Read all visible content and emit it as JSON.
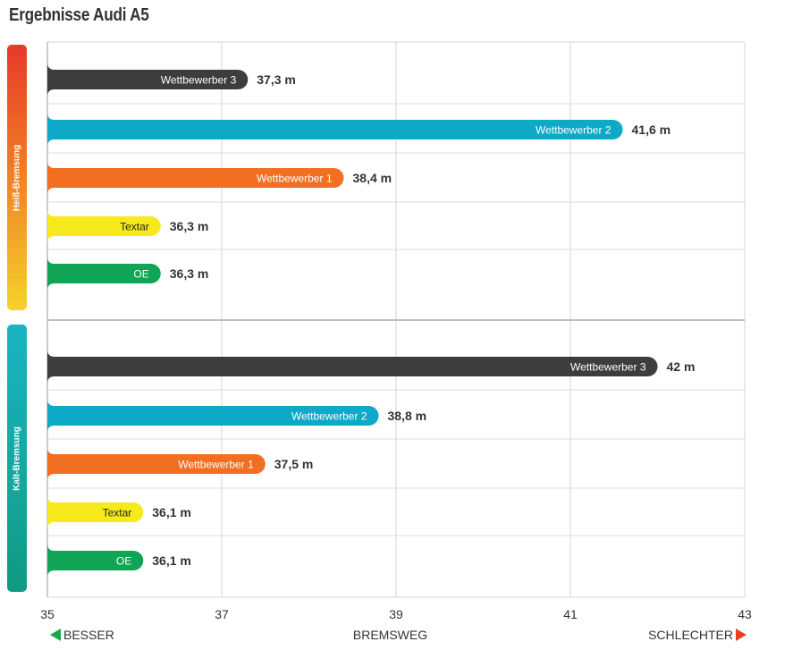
{
  "title": "Ergebnisse Audi A5",
  "sections": [
    {
      "label": "Heiß-Bremsung"
    },
    {
      "label": "Kalt-Bremsung"
    }
  ],
  "footer": {
    "left": "BESSER",
    "center": "BREMSWEG",
    "right": "SCHLECHTER"
  },
  "colors": {
    "Wettbewerber 3": "#3d3d3d",
    "Wettbewerber 2": "#0ea9c6",
    "Wettbewerber 1": "#f26f22",
    "Textar": "#f7ea1c",
    "OE": "#10a555"
  },
  "chart_data": {
    "type": "bar",
    "orientation": "horizontal",
    "xlabel": "BREMSWEG",
    "xlim": [
      35,
      43
    ],
    "xticks": [
      "35",
      "37",
      "39",
      "41",
      "43"
    ],
    "grid": true,
    "groups": [
      {
        "name": "Heiß-Bremsung",
        "bars": [
          {
            "label": "Wettbewerber 3",
            "value": 37.3,
            "value_label": "37,3 m"
          },
          {
            "label": "Wettbewerber 2",
            "value": 41.6,
            "value_label": "41,6 m"
          },
          {
            "label": "Wettbewerber 1",
            "value": 38.4,
            "value_label": "38,4 m"
          },
          {
            "label": "Textar",
            "value": 36.3,
            "value_label": "36,3 m"
          },
          {
            "label": "OE",
            "value": 36.3,
            "value_label": "36,3 m"
          }
        ]
      },
      {
        "name": "Kalt-Bremsung",
        "bars": [
          {
            "label": "Wettbewerber 3",
            "value": 42.0,
            "value_label": "42 m"
          },
          {
            "label": "Wettbewerber 2",
            "value": 38.8,
            "value_label": "38,8 m"
          },
          {
            "label": "Wettbewerber 1",
            "value": 37.5,
            "value_label": "37,5 m"
          },
          {
            "label": "Textar",
            "value": 36.1,
            "value_label": "36,1 m"
          },
          {
            "label": "OE",
            "value": 36.1,
            "value_label": "36,1 m"
          }
        ]
      }
    ]
  }
}
